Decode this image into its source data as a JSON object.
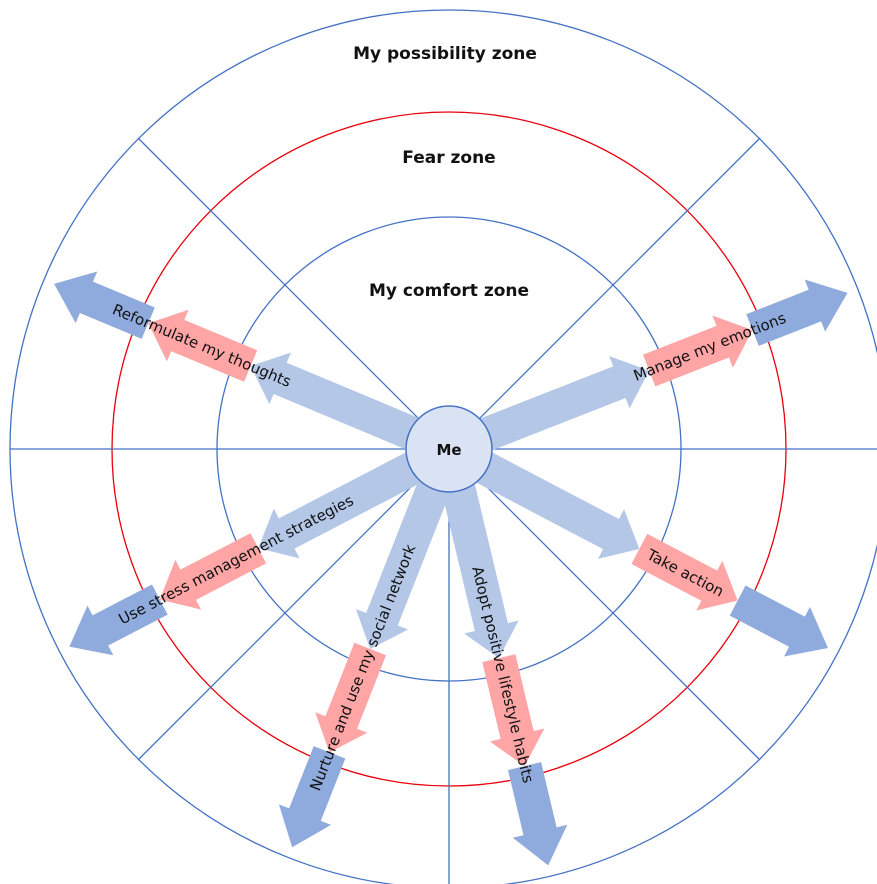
{
  "zones": {
    "outer": "My possibility zone",
    "middle": "Fear zone",
    "inner": "My comfort zone"
  },
  "center": "Me",
  "arrows": [
    {
      "id": "reformulate",
      "label": "Reformulate my thoughts"
    },
    {
      "id": "manage",
      "label": "Manage my emotions"
    },
    {
      "id": "stress",
      "label": "Use stress management strategies"
    },
    {
      "id": "action",
      "label": "Take action"
    },
    {
      "id": "network",
      "label": "Nurture and use my social network"
    },
    {
      "id": "habits",
      "label": "Adopt positive lifestyle habits"
    }
  ],
  "colors": {
    "circle_blue": "#4472c4",
    "fear_red": "#e8000b",
    "arrow_light": "#b4c7e7",
    "arrow_pink": "#ffa5a5",
    "arrow_dark": "#8faadc",
    "center_fill": "#dae3f3"
  }
}
